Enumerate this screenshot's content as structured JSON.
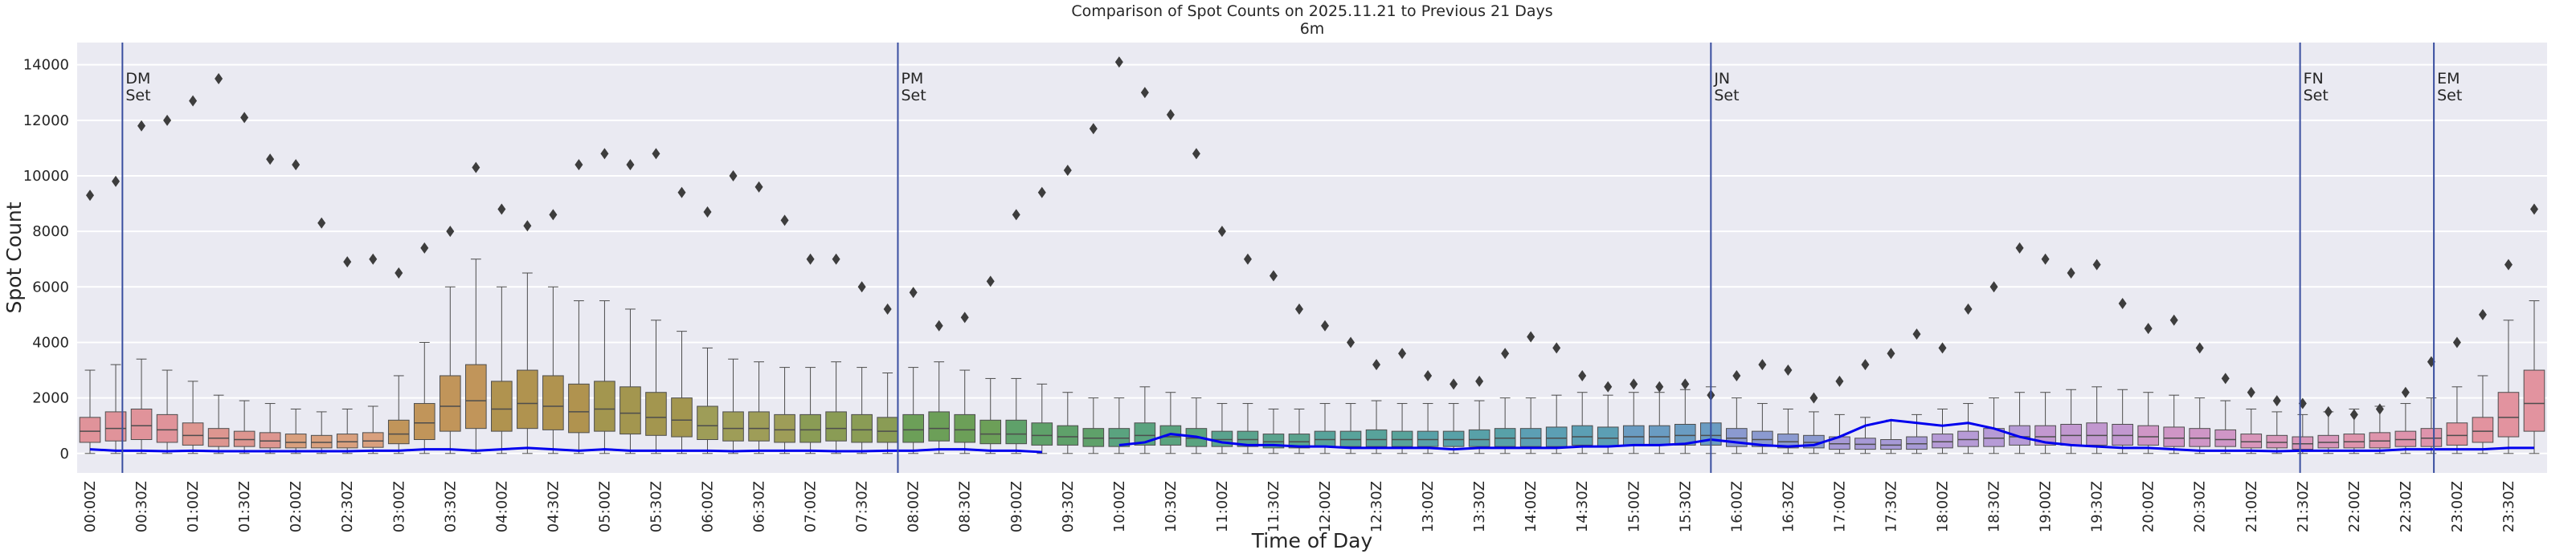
{
  "chart_data": {
    "type": "box",
    "title": "Comparison of Spot Counts on 2025.11.21 to Previous 21 Days",
    "subtitle": "6m",
    "xlabel": "Time of Day",
    "ylabel": "Spot Count",
    "categories": [
      "00:00Z",
      null,
      "00:30Z",
      null,
      "01:00Z",
      null,
      "01:30Z",
      null,
      "02:00Z",
      null,
      "02:30Z",
      null,
      "03:00Z",
      null,
      "03:30Z",
      null,
      "04:00Z",
      null,
      "04:30Z",
      null,
      "05:00Z",
      null,
      "05:30Z",
      null,
      "06:00Z",
      null,
      "06:30Z",
      null,
      "07:00Z",
      null,
      "07:30Z",
      null,
      "08:00Z",
      null,
      "08:30Z",
      null,
      "09:00Z",
      null,
      "09:30Z",
      null,
      "10:00Z",
      null,
      "10:30Z",
      null,
      "11:00Z",
      null,
      "11:30Z",
      null,
      "12:00Z",
      null,
      "12:30Z",
      null,
      "13:00Z",
      null,
      "13:30Z",
      null,
      "14:00Z",
      null,
      "14:30Z",
      null,
      "15:00Z",
      null,
      "15:30Z",
      null,
      "16:00Z",
      null,
      "16:30Z",
      null,
      "17:00Z",
      null,
      "17:30Z",
      null,
      "18:00Z",
      null,
      "18:30Z",
      null,
      "19:00Z",
      null,
      "19:30Z",
      null,
      "20:00Z",
      null,
      "20:30Z",
      null,
      "21:00Z",
      null,
      "21:30Z",
      null,
      "22:00Z",
      null,
      "22:30Z",
      null,
      "23:00Z",
      null,
      "23:30Z",
      null
    ],
    "box_colors": [
      "#e0939a",
      "#dd9690",
      "#d9a07e",
      "#c1955a",
      "#b0934f",
      "#a3964f",
      "#9e9d58",
      "#8a9c55",
      "#6c9f58",
      "#5fa16a",
      "#5aa37f",
      "#5aa38e",
      "#58a39b",
      "#58a1a8",
      "#5c9fb4",
      "#6a9cc2",
      "#8b9ad0",
      "#a79ad6",
      "#b69bd6",
      "#c298d0",
      "#cf96c6",
      "#d896ba",
      "#de94ac",
      "#e2939f"
    ],
    "q3": [
      1300,
      1500,
      1600,
      1400,
      1100,
      900,
      800,
      750,
      700,
      650,
      700,
      750,
      1200,
      1800,
      2800,
      3200,
      2600,
      3000,
      2800,
      2500,
      2600,
      2400,
      2200,
      2000,
      1700,
      1500,
      1500,
      1400,
      1400,
      1500,
      1400,
      1300,
      1400,
      1500,
      1400,
      1200,
      1200,
      1100,
      1000,
      900,
      900,
      1100,
      1000,
      900,
      800,
      800,
      700,
      700,
      800,
      800,
      850,
      800,
      800,
      800,
      850,
      900,
      900,
      950,
      1000,
      950,
      1000,
      1000,
      1050,
      1100,
      900,
      800,
      700,
      650,
      600,
      550,
      500,
      600,
      700,
      800,
      900,
      1000,
      1000,
      1050,
      1100,
      1050,
      1000,
      950,
      900,
      850,
      700,
      650,
      600,
      650,
      700,
      750,
      800,
      900,
      1100,
      1300,
      2200,
      3000
    ],
    "median": [
      800,
      900,
      1000,
      850,
      650,
      550,
      500,
      450,
      400,
      400,
      420,
      450,
      700,
      1100,
      1700,
      1900,
      1600,
      1800,
      1700,
      1500,
      1600,
      1450,
      1300,
      1200,
      1000,
      900,
      900,
      850,
      850,
      900,
      850,
      800,
      850,
      900,
      850,
      700,
      700,
      650,
      600,
      550,
      550,
      650,
      600,
      550,
      500,
      500,
      420,
      420,
      500,
      500,
      500,
      500,
      500,
      500,
      500,
      550,
      550,
      550,
      600,
      550,
      600,
      600,
      650,
      650,
      550,
      500,
      420,
      400,
      350,
      330,
      300,
      350,
      420,
      500,
      550,
      600,
      600,
      650,
      650,
      650,
      600,
      550,
      550,
      500,
      420,
      400,
      350,
      400,
      420,
      450,
      500,
      550,
      650,
      800,
      1300,
      1800
    ],
    "q1": [
      400,
      450,
      500,
      400,
      300,
      250,
      250,
      200,
      200,
      200,
      200,
      220,
      350,
      500,
      800,
      900,
      800,
      900,
      850,
      750,
      800,
      700,
      650,
      600,
      500,
      450,
      450,
      400,
      400,
      450,
      400,
      400,
      400,
      450,
      400,
      350,
      350,
      300,
      300,
      250,
      250,
      300,
      300,
      250,
      250,
      250,
      200,
      200,
      250,
      250,
      250,
      250,
      250,
      250,
      250,
      250,
      250,
      250,
      300,
      250,
      300,
      300,
      300,
      300,
      250,
      250,
      200,
      200,
      150,
      150,
      150,
      150,
      200,
      250,
      250,
      300,
      300,
      300,
      300,
      300,
      300,
      250,
      250,
      250,
      200,
      200,
      150,
      200,
      200,
      200,
      250,
      250,
      300,
      400,
      600,
      800
    ],
    "whishi": [
      3000,
      3200,
      3400,
      3000,
      2600,
      2100,
      1900,
      1800,
      1600,
      1500,
      1600,
      1700,
      2800,
      4000,
      6000,
      7000,
      6000,
      6500,
      6000,
      5500,
      5500,
      5200,
      4800,
      4400,
      3800,
      3400,
      3300,
      3100,
      3100,
      3300,
      3100,
      2900,
      3100,
      3300,
      3000,
      2700,
      2700,
      2500,
      2200,
      2000,
      2000,
      2400,
      2200,
      2000,
      1800,
      1800,
      1600,
      1600,
      1800,
      1800,
      1900,
      1800,
      1800,
      1800,
      1900,
      2000,
      2000,
      2100,
      2200,
      2100,
      2200,
      2200,
      2300,
      2400,
      2000,
      1800,
      1600,
      1500,
      1400,
      1300,
      1200,
      1400,
      1600,
      1800,
      2000,
      2200,
      2200,
      2300,
      2400,
      2300,
      2200,
      2100,
      2000,
      1900,
      1600,
      1500,
      1400,
      1500,
      1600,
      1700,
      1800,
      2000,
      2400,
      2800,
      4800,
      5500
    ],
    "whislo": [
      0,
      0,
      0,
      0,
      0,
      0,
      0,
      0,
      0,
      0,
      0,
      0,
      0,
      0,
      0,
      0,
      0,
      0,
      0,
      0,
      0,
      0,
      0,
      0,
      0,
      0,
      0,
      0,
      0,
      0,
      0,
      0,
      0,
      0,
      0,
      0,
      0,
      0,
      0,
      0,
      0,
      0,
      0,
      0,
      0,
      0,
      0,
      0,
      0,
      0,
      0,
      0,
      0,
      0,
      0,
      0,
      0,
      0,
      0,
      0,
      0,
      0,
      0,
      0,
      0,
      0,
      0,
      0,
      0,
      0,
      0,
      0,
      0,
      0,
      0,
      0,
      0,
      0,
      0,
      0,
      0,
      0,
      0,
      0,
      0,
      0,
      0,
      0,
      0,
      0,
      0,
      0,
      0,
      0,
      0,
      0
    ],
    "outliers": [
      9300,
      9800,
      11800,
      12000,
      12700,
      13500,
      12100,
      10600,
      10400,
      8300,
      6900,
      7000,
      6500,
      7400,
      8000,
      10300,
      8800,
      8200,
      8600,
      10400,
      10800,
      10400,
      10800,
      9400,
      8700,
      10000,
      9600,
      8400,
      7000,
      7000,
      6000,
      5200,
      5800,
      4600,
      4900,
      6200,
      8600,
      9400,
      10200,
      11700,
      14100,
      13000,
      12200,
      10800,
      8000,
      7000,
      6400,
      5200,
      4600,
      4000,
      3200,
      3600,
      2800,
      2500,
      2600,
      3600,
      4200,
      3800,
      2800,
      2400,
      2500,
      2400,
      2500,
      2100,
      2800,
      3200,
      3000,
      2000,
      2600,
      3200,
      3600,
      4300,
      3800,
      5200,
      6000,
      7400,
      7000,
      6500,
      6800,
      5400,
      4500,
      4800,
      3800,
      2700,
      2200,
      1900,
      1800,
      1500,
      1400,
      1600,
      2200,
      3300,
      4000,
      5000,
      6800,
      8800
    ],
    "line": {
      "color": "#0000ee",
      "values": [
        150,
        100,
        100,
        80,
        100,
        80,
        80,
        80,
        80,
        80,
        80,
        100,
        100,
        150,
        150,
        100,
        150,
        200,
        150,
        100,
        150,
        100,
        100,
        100,
        100,
        80,
        100,
        100,
        100,
        80,
        80,
        100,
        100,
        150,
        150,
        100,
        100,
        50,
        null,
        null,
        300,
        400,
        700,
        600,
        400,
        300,
        300,
        250,
        250,
        200,
        200,
        200,
        200,
        150,
        200,
        200,
        200,
        200,
        250,
        250,
        300,
        300,
        350,
        500,
        400,
        300,
        250,
        300,
        600,
        1000,
        1200,
        1100,
        1000,
        1100,
        900,
        600,
        400,
        300,
        250,
        200,
        200,
        150,
        100,
        100,
        100,
        80,
        100,
        100,
        100,
        100,
        150,
        150,
        150,
        150,
        200,
        200
      ]
    },
    "annotations": [
      {
        "x": 1.26,
        "text": [
          "DM",
          "Set"
        ]
      },
      {
        "x": 31.4,
        "text": [
          "PM",
          "Set"
        ]
      },
      {
        "x": 63.0,
        "text": [
          "JN",
          "Set"
        ]
      },
      {
        "x": 85.9,
        "text": [
          "FN",
          "Set"
        ]
      },
      {
        "x": 91.1,
        "text": [
          "EM",
          "Set"
        ]
      }
    ],
    "annotation_color": "#3a4fa0",
    "xlim": [
      -0.5,
      95.5
    ],
    "ylim": [
      -700,
      14800
    ],
    "yticks": [
      0,
      2000,
      4000,
      6000,
      8000,
      10000,
      12000,
      14000
    ],
    "grid": true
  }
}
